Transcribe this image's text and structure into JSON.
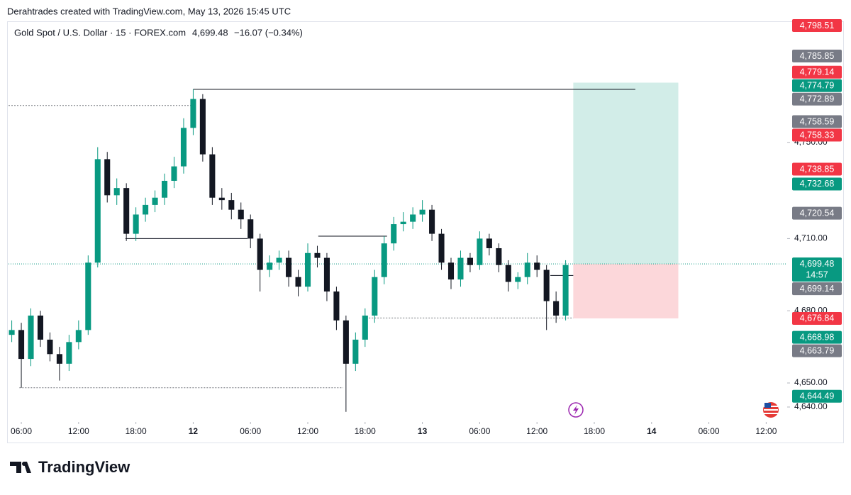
{
  "header": "Derahtrades created with TradingView.com, May 13, 2026 15:45 UTC",
  "legend": {
    "symbol": "Gold Spot / U.S. Dollar · 15 · FOREX.com",
    "price": "4,699.48",
    "change": "−16.07 (−0.34%)"
  },
  "brand": "TradingView",
  "chart_data": {
    "type": "candlestick",
    "up_color": "#089981",
    "down_color": "#131722",
    "x": [
      5,
      6,
      7,
      8,
      9,
      10,
      11,
      12,
      13,
      14,
      15,
      16,
      17,
      18,
      19,
      20,
      21,
      22,
      23,
      24,
      25,
      26,
      27,
      28,
      29,
      30,
      31,
      32,
      33,
      34,
      35,
      36,
      37,
      38,
      39,
      40,
      41,
      42,
      43,
      44,
      45,
      46,
      47,
      48,
      49,
      50,
      51,
      52,
      53,
      54,
      55,
      56,
      57,
      58,
      59,
      60,
      61,
      62,
      63
    ],
    "open": [
      4670,
      4672,
      4660,
      4678,
      4668,
      4662,
      4658,
      4667,
      4672,
      4700,
      4743,
      4728,
      4731,
      4712,
      4720,
      4724,
      4727,
      4734,
      4740,
      4756,
      4768,
      4745,
      4727,
      4726,
      4722,
      4718,
      4710,
      4697,
      4700,
      4702,
      4694,
      4690,
      4704,
      4702,
      4688,
      4676,
      4658,
      4668,
      4678,
      4694,
      4708,
      4716,
      4717,
      4720,
      4722,
      4712,
      4700,
      4693,
      4702,
      4699,
      4710,
      4706,
      4699,
      4692,
      4694,
      4700,
      4697,
      4684,
      4678
    ],
    "high": [
      4676,
      4675,
      4681,
      4680,
      4671,
      4665,
      4670,
      4676,
      4703,
      4748,
      4746,
      4735,
      4733,
      4723,
      4727,
      4730,
      4737,
      4744,
      4760,
      4772,
      4770,
      4748,
      4731,
      4729,
      4725,
      4720,
      4712,
      4703,
      4705,
      4705,
      4697,
      4708,
      4707,
      4704,
      4690,
      4678,
      4671,
      4681,
      4697,
      4711,
      4719,
      4721,
      4723,
      4726,
      4724,
      4714,
      4702,
      4705,
      4704,
      4713,
      4712,
      4708,
      4701,
      4696,
      4704,
      4703,
      4699,
      4688,
      4701
    ],
    "low": [
      4667,
      4648,
      4657,
      4665,
      4659,
      4651,
      4655,
      4664,
      4670,
      4698,
      4725,
      4724,
      4709,
      4709,
      4717,
      4721,
      4724,
      4731,
      4737,
      4753,
      4742,
      4724,
      4722,
      4718,
      4714,
      4706,
      4688,
      4694,
      4697,
      4690,
      4686,
      4688,
      4698,
      4684,
      4672,
      4638,
      4655,
      4665,
      4675,
      4691,
      4705,
      4713,
      4714,
      4717,
      4709,
      4697,
      4689,
      4690,
      4696,
      4697,
      4703,
      4696,
      4688,
      4689,
      4691,
      4694,
      4672,
      4675,
      4676
    ],
    "close": [
      4672,
      4660,
      4678,
      4668,
      4662,
      4658,
      4667,
      4672,
      4700,
      4743,
      4728,
      4731,
      4712,
      4720,
      4724,
      4727,
      4734,
      4740,
      4756,
      4768,
      4745,
      4727,
      4726,
      4722,
      4718,
      4710,
      4697,
      4700,
      4702,
      4694,
      4690,
      4704,
      4702,
      4688,
      4676,
      4658,
      4668,
      4678,
      4694,
      4708,
      4716,
      4717,
      4720,
      4722,
      4712,
      4700,
      4693,
      4702,
      4699,
      4710,
      4706,
      4699,
      4692,
      4694,
      4700,
      4697,
      4684,
      4678,
      4699
    ],
    "xlim": [
      4.66,
      86.2
    ],
    "ylim": [
      4633.8,
      4800
    ],
    "xticks": [
      {
        "value": 6,
        "label": "06:00"
      },
      {
        "value": 12,
        "label": "12:00"
      },
      {
        "value": 18,
        "label": "18:00"
      },
      {
        "value": 24,
        "label": "12"
      },
      {
        "value": 30,
        "label": "06:00"
      },
      {
        "value": 36,
        "label": "12:00"
      },
      {
        "value": 42,
        "label": "18:00"
      },
      {
        "value": 48,
        "label": "13"
      },
      {
        "value": 54,
        "label": "06:00"
      },
      {
        "value": 60,
        "label": "12:00"
      },
      {
        "value": 66,
        "label": "18:00"
      },
      {
        "value": 72,
        "label": "14"
      },
      {
        "value": 78,
        "label": "06:00"
      },
      {
        "value": 84,
        "label": "12:00"
      }
    ],
    "yticks": [
      {
        "value": 4640,
        "label": "4,640.00"
      },
      {
        "value": 4650,
        "label": "4,650.00"
      },
      {
        "value": 4680,
        "label": "4,680.00"
      },
      {
        "value": 4710,
        "label": "4,710.00"
      },
      {
        "value": 4750,
        "label": "4,750.00"
      }
    ],
    "price_tags": [
      {
        "value": 4798.51,
        "label": "4,798.51",
        "color": "#f23645"
      },
      {
        "value": 4785.85,
        "label": "4,785.85",
        "color": "#787b86"
      },
      {
        "value": 4779.14,
        "label": "4,779.14",
        "color": "#f23645"
      },
      {
        "value": 4774.79,
        "label": "4,774.79",
        "color": "#089981"
      },
      {
        "value": 4772.89,
        "label": "4,772.89",
        "color": "#787b86"
      },
      {
        "value": 4758.59,
        "label": "4,758.59",
        "color": "#787b86"
      },
      {
        "value": 4758.33,
        "label": "4,758.33",
        "color": "#f23645"
      },
      {
        "value": 4738.85,
        "label": "4,738.85",
        "color": "#f23645"
      },
      {
        "value": 4732.68,
        "label": "4,732.68",
        "color": "#089981"
      },
      {
        "value": 4720.54,
        "label": "4,720.54",
        "color": "#787b86"
      },
      {
        "value": 4699.48,
        "label": "4,699.48",
        "color": "#089981",
        "countdown": "14:57"
      },
      {
        "value": 4699.14,
        "label": "4,699.14",
        "color": "#787b86"
      },
      {
        "value": 4676.84,
        "label": "4,676.84",
        "color": "#f23645"
      },
      {
        "value": 4668.98,
        "label": "4,668.98",
        "color": "#089981"
      },
      {
        "value": 4663.79,
        "label": "4,663.79",
        "color": "#787b86"
      },
      {
        "value": 4644.49,
        "label": "4,644.49",
        "color": "#089981"
      }
    ],
    "last_price": 4699.48,
    "levels": [
      {
        "value": 4772,
        "x": [
          24,
          70.3
        ],
        "style": "solid"
      },
      {
        "value": 4710,
        "x": [
          16.9,
          29.7
        ],
        "style": "solid"
      },
      {
        "value": 4711,
        "x": [
          37.1,
          44.3
        ],
        "style": "solid"
      },
      {
        "value": 4765.3,
        "x": [
          4.66,
          24
        ],
        "style": "dotted"
      },
      {
        "value": 4648,
        "x": [
          5.8,
          39.7
        ],
        "style": "dotted"
      },
      {
        "value": 4677,
        "x": [
          42.4,
          63.8
        ],
        "style": "dotted"
      },
      {
        "value": 4694.7,
        "x": [
          61.4,
          63.8
        ],
        "style": "solid"
      }
    ],
    "position": {
      "entry": 4699.48,
      "target": 4774.79,
      "stop": 4676.84,
      "x": [
        63.8,
        74.8
      ]
    }
  }
}
